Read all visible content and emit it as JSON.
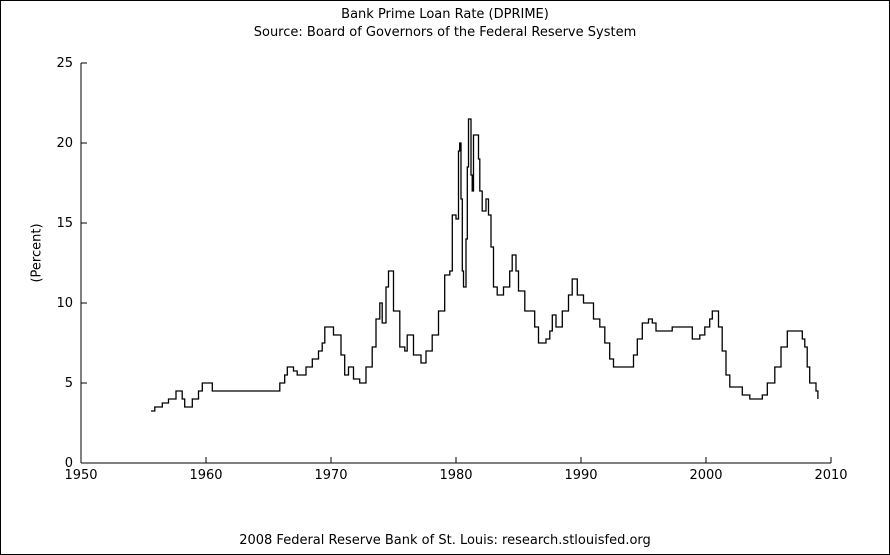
{
  "chart_data": {
    "type": "line",
    "title": "Bank Prime Loan Rate (DPRIME)",
    "subtitle": "Source: Board of Governors of the Federal Reserve System",
    "footer": "2008 Federal Reserve Bank of St. Louis: research.stlouisfed.org",
    "xlabel": "",
    "ylabel": "(Percent)",
    "xlim": [
      1950,
      2010
    ],
    "ylim": [
      0,
      25
    ],
    "xticks": [
      1950,
      1960,
      1970,
      1980,
      1990,
      2000,
      2010
    ],
    "yticks": [
      0,
      5,
      10,
      15,
      20,
      25
    ],
    "grid": false,
    "series": [
      {
        "color": "#000000",
        "points": [
          [
            1955.6,
            3.25
          ],
          [
            1955.9,
            3.5
          ],
          [
            1956.5,
            3.75
          ],
          [
            1957.0,
            4.0
          ],
          [
            1957.6,
            4.5
          ],
          [
            1958.1,
            4.0
          ],
          [
            1958.3,
            3.5
          ],
          [
            1958.9,
            4.0
          ],
          [
            1959.4,
            4.5
          ],
          [
            1959.7,
            5.0
          ],
          [
            1960.5,
            4.5
          ],
          [
            1965.9,
            5.0
          ],
          [
            1966.3,
            5.5
          ],
          [
            1966.5,
            6.0
          ],
          [
            1967.0,
            5.75
          ],
          [
            1967.3,
            5.5
          ],
          [
            1968.0,
            6.0
          ],
          [
            1968.5,
            6.5
          ],
          [
            1969.0,
            7.0
          ],
          [
            1969.3,
            7.5
          ],
          [
            1969.5,
            8.5
          ],
          [
            1970.2,
            8.0
          ],
          [
            1970.8,
            6.75
          ],
          [
            1971.1,
            5.5
          ],
          [
            1971.4,
            6.0
          ],
          [
            1971.8,
            5.25
          ],
          [
            1972.3,
            5.0
          ],
          [
            1972.8,
            6.0
          ],
          [
            1973.3,
            7.25
          ],
          [
            1973.6,
            9.0
          ],
          [
            1973.9,
            10.0
          ],
          [
            1974.1,
            8.75
          ],
          [
            1974.4,
            11.0
          ],
          [
            1974.6,
            12.0
          ],
          [
            1975.0,
            9.5
          ],
          [
            1975.5,
            7.25
          ],
          [
            1975.9,
            7.0
          ],
          [
            1976.1,
            8.0
          ],
          [
            1976.6,
            6.75
          ],
          [
            1977.2,
            6.25
          ],
          [
            1977.6,
            7.0
          ],
          [
            1978.1,
            8.0
          ],
          [
            1978.6,
            9.5
          ],
          [
            1979.1,
            11.75
          ],
          [
            1979.5,
            12.0
          ],
          [
            1979.7,
            15.5
          ],
          [
            1980.0,
            15.25
          ],
          [
            1980.2,
            19.5
          ],
          [
            1980.3,
            20.0
          ],
          [
            1980.4,
            16.5
          ],
          [
            1980.5,
            12.0
          ],
          [
            1980.6,
            11.0
          ],
          [
            1980.8,
            14.0
          ],
          [
            1980.9,
            18.5
          ],
          [
            1981.0,
            21.5
          ],
          [
            1981.2,
            18.0
          ],
          [
            1981.3,
            17.0
          ],
          [
            1981.4,
            20.5
          ],
          [
            1981.6,
            20.5
          ],
          [
            1981.8,
            19.0
          ],
          [
            1981.9,
            17.0
          ],
          [
            1982.1,
            15.75
          ],
          [
            1982.4,
            16.5
          ],
          [
            1982.6,
            15.5
          ],
          [
            1982.8,
            13.5
          ],
          [
            1983.0,
            11.0
          ],
          [
            1983.3,
            10.5
          ],
          [
            1983.8,
            11.0
          ],
          [
            1984.3,
            12.0
          ],
          [
            1984.5,
            13.0
          ],
          [
            1984.8,
            12.0
          ],
          [
            1985.0,
            10.75
          ],
          [
            1985.5,
            9.5
          ],
          [
            1986.3,
            8.5
          ],
          [
            1986.6,
            7.5
          ],
          [
            1987.2,
            7.75
          ],
          [
            1987.5,
            8.25
          ],
          [
            1987.7,
            9.25
          ],
          [
            1988.0,
            8.5
          ],
          [
            1988.5,
            9.5
          ],
          [
            1989.0,
            10.5
          ],
          [
            1989.3,
            11.5
          ],
          [
            1989.7,
            10.5
          ],
          [
            1990.2,
            10.0
          ],
          [
            1991.0,
            9.0
          ],
          [
            1991.5,
            8.5
          ],
          [
            1991.9,
            7.5
          ],
          [
            1992.3,
            6.5
          ],
          [
            1992.6,
            6.0
          ],
          [
            1994.2,
            6.75
          ],
          [
            1994.5,
            7.75
          ],
          [
            1994.9,
            8.75
          ],
          [
            1995.4,
            9.0
          ],
          [
            1995.7,
            8.75
          ],
          [
            1996.0,
            8.25
          ],
          [
            1997.3,
            8.5
          ],
          [
            1998.9,
            7.75
          ],
          [
            1999.5,
            8.0
          ],
          [
            1999.9,
            8.5
          ],
          [
            2000.3,
            9.0
          ],
          [
            2000.5,
            9.5
          ],
          [
            2001.0,
            8.5
          ],
          [
            2001.3,
            7.0
          ],
          [
            2001.6,
            5.5
          ],
          [
            2001.9,
            4.75
          ],
          [
            2002.9,
            4.25
          ],
          [
            2003.5,
            4.0
          ],
          [
            2004.5,
            4.25
          ],
          [
            2004.9,
            5.0
          ],
          [
            2005.5,
            6.0
          ],
          [
            2006.0,
            7.25
          ],
          [
            2006.5,
            8.25
          ],
          [
            2007.7,
            7.75
          ],
          [
            2007.9,
            7.25
          ],
          [
            2008.1,
            6.0
          ],
          [
            2008.3,
            5.0
          ],
          [
            2008.8,
            4.5
          ],
          [
            2008.95,
            4.0
          ]
        ]
      }
    ]
  }
}
